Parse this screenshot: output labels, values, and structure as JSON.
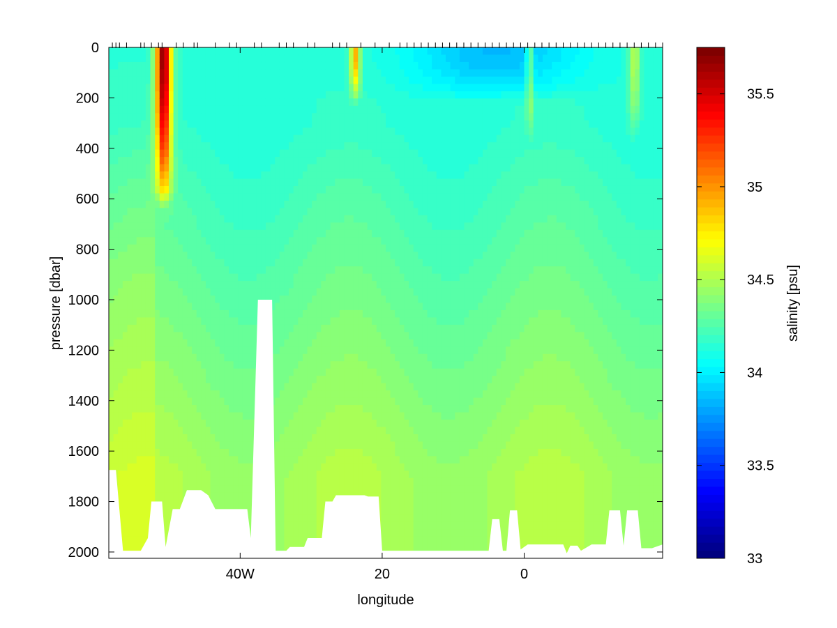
{
  "chart_data": [
    {
      "type": "heatmap",
      "title": "",
      "xlabel": "longitude",
      "ylabel": "pressure [dbar]",
      "xlim": [
        -58.5,
        19.5
      ],
      "ylim": [
        2025,
        0
      ],
      "y_reversed": true,
      "xticks": [
        {
          "value": -40,
          "label": "40W"
        },
        {
          "value": -20,
          "label": "20"
        },
        {
          "value": 0,
          "label": "0"
        }
      ],
      "yticks": [
        {
          "value": 0,
          "label": "0"
        },
        {
          "value": 200,
          "label": "200"
        },
        {
          "value": 400,
          "label": "400"
        },
        {
          "value": 600,
          "label": "600"
        },
        {
          "value": 800,
          "label": "800"
        },
        {
          "value": 1000,
          "label": "1000"
        },
        {
          "value": 1200,
          "label": "1200"
        },
        {
          "value": 1400,
          "label": "1400"
        },
        {
          "value": 1600,
          "label": "1600"
        },
        {
          "value": 1800,
          "label": "1800"
        },
        {
          "value": 2000,
          "label": "2000"
        }
      ],
      "station_longitudes": [
        -58,
        -57.5,
        -57,
        -56,
        -54,
        -53.5,
        -52.5,
        -51.5,
        -51,
        -49,
        -48,
        -46.5,
        -46,
        -43.5,
        -41.5,
        -40.5,
        -38,
        -37,
        -34.5,
        -33.5,
        -32.5,
        -30.5,
        -29.5,
        -27,
        -26,
        -25,
        -23,
        -21,
        -19,
        -17.5,
        -16.5,
        -15.5,
        -14.5,
        -13.5,
        -12.5,
        -11.5,
        -10.5,
        -9.5,
        -8.5,
        -7.5,
        -6.5,
        -5.5,
        -4.5,
        -3.5,
        -2.5,
        -1.5,
        -0.5,
        0.5,
        1.5,
        2.5,
        3.5,
        4.5,
        5.5,
        6.5,
        7.5,
        8.5,
        9.5,
        10.5,
        11.5,
        12.5,
        13.5,
        14.5,
        15.5,
        16.5,
        17.5,
        18.5,
        19.5
      ],
      "bottom_depth_profile": [
        [
          -58.5,
          1675
        ],
        [
          -57.5,
          1675
        ],
        [
          -56.5,
          1995
        ],
        [
          -54,
          1995
        ],
        [
          -53,
          1945
        ],
        [
          -52.5,
          1800
        ],
        [
          -51,
          1800
        ],
        [
          -50.5,
          1980
        ],
        [
          -49.5,
          1830
        ],
        [
          -48.5,
          1830
        ],
        [
          -47.5,
          1755
        ],
        [
          -45.5,
          1755
        ],
        [
          -44.5,
          1775
        ],
        [
          -43.5,
          1830
        ],
        [
          -39,
          1830
        ],
        [
          -38.5,
          1945
        ],
        [
          -37.5,
          1000
        ],
        [
          -35.5,
          1000
        ],
        [
          -35,
          1995
        ],
        [
          -33.5,
          1995
        ],
        [
          -33,
          1980
        ],
        [
          -31,
          1980
        ],
        [
          -30.5,
          1945
        ],
        [
          -28.5,
          1945
        ],
        [
          -28,
          1800
        ],
        [
          -27,
          1800
        ],
        [
          -26.5,
          1775
        ],
        [
          -22.5,
          1775
        ],
        [
          -22,
          1780
        ],
        [
          -20.5,
          1780
        ],
        [
          -20,
          1995
        ],
        [
          -15,
          1995
        ],
        [
          -14.5,
          1995
        ],
        [
          -5,
          1995
        ],
        [
          -4.5,
          1870
        ],
        [
          -3.5,
          1870
        ],
        [
          -3,
          1995
        ],
        [
          -2.5,
          1995
        ],
        [
          -2,
          1835
        ],
        [
          -1,
          1835
        ],
        [
          -0.5,
          1990
        ],
        [
          0.5,
          1970
        ],
        [
          5.5,
          1970
        ],
        [
          6,
          2005
        ],
        [
          6.5,
          1975
        ],
        [
          7.5,
          1975
        ],
        [
          8,
          1995
        ],
        [
          9.5,
          1970
        ],
        [
          11.5,
          1970
        ],
        [
          12,
          1835
        ],
        [
          13.5,
          1835
        ],
        [
          14,
          1975
        ],
        [
          14.5,
          1835
        ],
        [
          16,
          1835
        ],
        [
          16.5,
          1985
        ],
        [
          18,
          1985
        ],
        [
          19.5,
          1970
        ]
      ],
      "salinity_field": {
        "description_free": true,
        "background_psu": 34.3,
        "features": [
          {
            "lon": -50.8,
            "top": 0,
            "bottom": 550,
            "width_deg": 2.2,
            "peak_psu": 35.75
          },
          {
            "lon": -23.8,
            "top": 0,
            "bottom": 180,
            "width_deg": 1.4,
            "peak_psu": 35.0
          },
          {
            "lon": -4.0,
            "top": 0,
            "bottom": 170,
            "width_deg": 24.0,
            "peak_psu": 33.9
          },
          {
            "lon": 0.8,
            "top": 0,
            "bottom": 300,
            "width_deg": 1.0,
            "peak_psu": 34.6
          },
          {
            "lon": 15.5,
            "top": 0,
            "bottom": 300,
            "width_deg": 1.6,
            "peak_psu": 34.6
          }
        ]
      },
      "colorbar": {
        "label": "salinity [psu]",
        "min": 33,
        "max": 35.75,
        "colormap": "jet",
        "ticks": [
          {
            "value": 33,
            "label": "33"
          },
          {
            "value": 33.5,
            "label": "33.5"
          },
          {
            "value": 34,
            "label": "34"
          },
          {
            "value": 34.5,
            "label": "34.5"
          },
          {
            "value": 35,
            "label": "35"
          },
          {
            "value": 35.5,
            "label": "35.5"
          }
        ]
      }
    }
  ]
}
